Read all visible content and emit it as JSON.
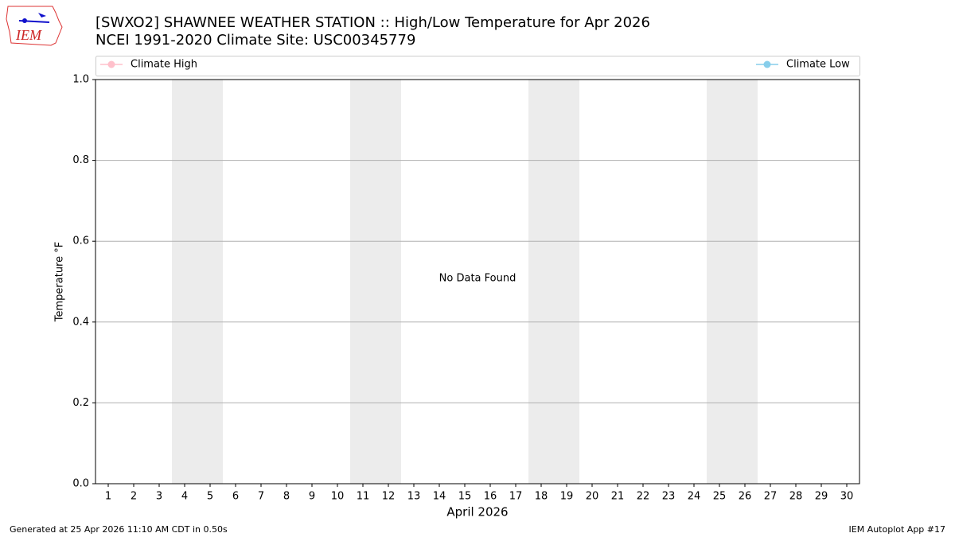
{
  "logo_text": "IEM",
  "footer": {
    "left": "Generated at 25 Apr 2026 11:10 AM CDT in 0.50s",
    "right": "IEM Autoplot App #17"
  },
  "chart_data": {
    "type": "line",
    "title": "[SWXO2] SHAWNEE WEATHER STATION :: High/Low Temperature for Apr 2026",
    "subtitle": "NCEI 1991-2020 Climate Site: USC00345779",
    "x_label": "April 2026",
    "y_label": "Temperature °F",
    "annotation": "No Data Found",
    "series": [
      {
        "name": "Climate High",
        "color": "#ffc0cb"
      },
      {
        "name": "Climate Low",
        "color": "#87ceeb"
      }
    ],
    "xlim": [
      0.5,
      30.5
    ],
    "xticks": [
      1,
      2,
      3,
      4,
      5,
      6,
      7,
      8,
      9,
      10,
      11,
      12,
      13,
      14,
      15,
      16,
      17,
      18,
      19,
      20,
      21,
      22,
      23,
      24,
      25,
      26,
      27,
      28,
      29,
      30
    ],
    "ylim": [
      0,
      1
    ],
    "yticks": [
      {
        "value": 0,
        "label": "0.0"
      },
      0.2,
      0.4,
      0.6,
      0.8,
      {
        "value": 1,
        "label": "1.0"
      }
    ],
    "grid": true,
    "shaded_spans": [
      [
        3.5,
        5.5
      ],
      [
        10.5,
        12.5
      ],
      [
        17.5,
        19.5
      ],
      [
        24.5,
        26.5
      ]
    ],
    "shade_color": "#ececec"
  }
}
